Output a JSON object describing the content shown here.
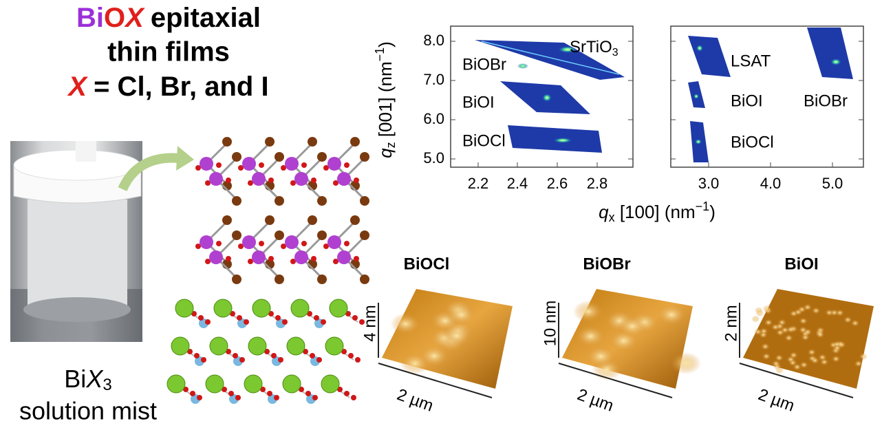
{
  "title": {
    "line1": {
      "bi": "Bi",
      "o": "O",
      "x": "X",
      "rest": "epitaxial"
    },
    "line2": "thin films",
    "line3": {
      "x": "X",
      "rest": "= Cl, Br, and I"
    }
  },
  "caption": {
    "bi": "Bi",
    "x": "X",
    "sub": "3",
    "line2": "solution mist"
  },
  "rsm": {
    "yticks": [
      "8.0",
      "7.0",
      "6.0",
      "5.0"
    ],
    "xticks_left": [
      "2.2",
      "2.4",
      "2.6",
      "2.8"
    ],
    "xticks_right": [
      "3.0",
      "4.0",
      "5.0"
    ],
    "y_label": {
      "q": "q",
      "sub": "z",
      "rest": " [001] (nm",
      "sup": "−1",
      "end": ")"
    },
    "x_label": {
      "q": "q",
      "sub": "x",
      "rest": " [100] (nm",
      "sup": "−1",
      "end": ")"
    },
    "left_labels": {
      "srtio": "SrTiO",
      "srtio_sub": "3",
      "biobr": "BiOBr",
      "bioi": "BiOI",
      "biocl": "BiOCl"
    },
    "right_labels": {
      "lsat": "LSAT",
      "bioi": "BiOI",
      "biobr": "BiOBr",
      "biocl": "BiOCl"
    }
  },
  "afm": [
    {
      "title": "BiOCl",
      "height": "4 nm",
      "lateral": "2 µm"
    },
    {
      "title": "BiOBr",
      "height": "10 nm",
      "lateral": "2 µm"
    },
    {
      "title": "BiOI",
      "height": "2 nm",
      "lateral": "2 µm"
    }
  ]
}
